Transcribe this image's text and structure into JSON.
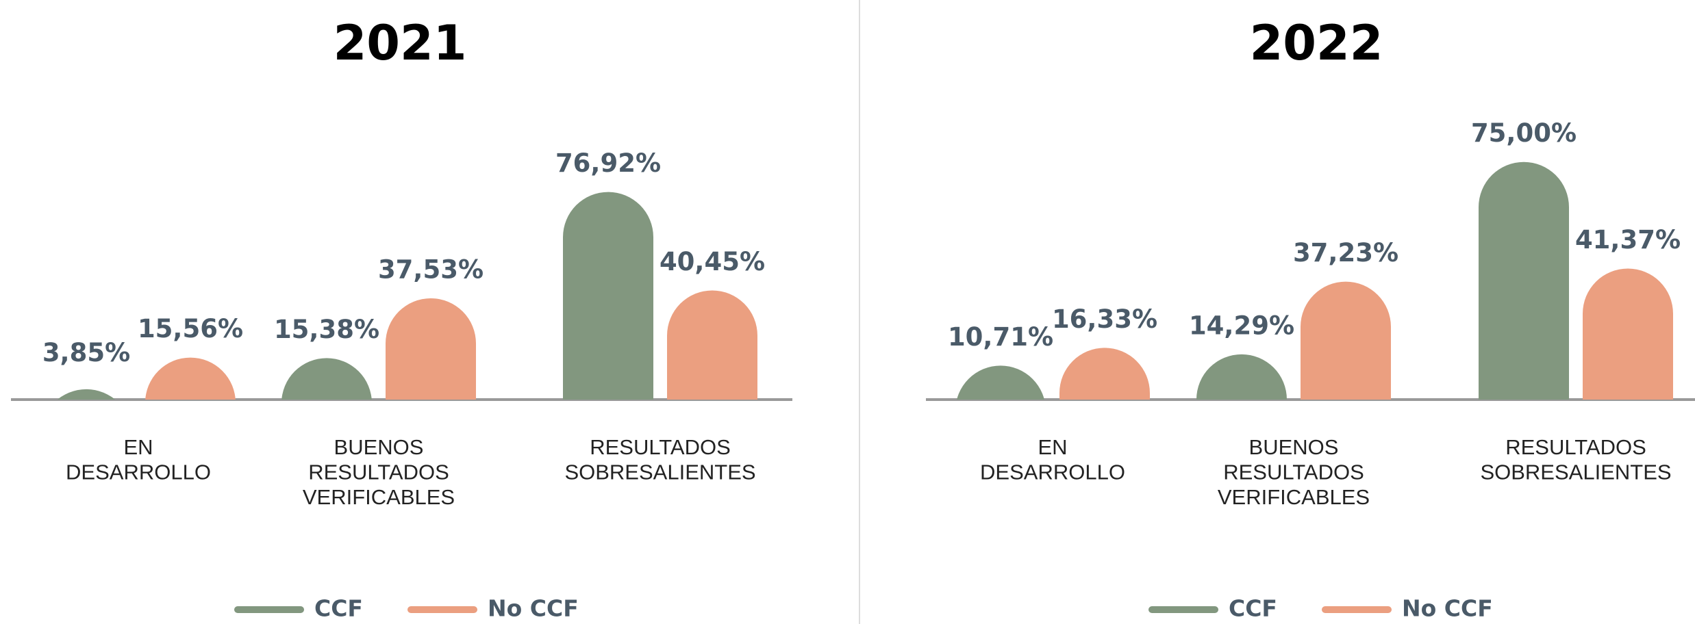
{
  "chart_data": [
    {
      "type": "bar",
      "title": "2021",
      "categories": [
        "EN\nDESARROLLO",
        "BUENOS\nRESULTADOS\nVERIFICABLES",
        "RESULTADOS\nSOBRESALIENTES"
      ],
      "series": [
        {
          "name": "CCF",
          "color": "#82977f",
          "values": [
            3.85,
            15.38,
            76.92
          ],
          "value_labels": [
            "3,85%",
            "15,38%",
            "76,92%"
          ]
        },
        {
          "name": "No CCF",
          "color": "#eb9f80",
          "values": [
            15.56,
            37.53,
            40.45
          ],
          "value_labels": [
            "15,56%",
            "37,53%",
            "40,45%"
          ]
        }
      ],
      "ylim": [
        0,
        108
      ]
    },
    {
      "type": "bar",
      "title": "2022",
      "categories": [
        "EN\nDESARROLLO",
        "BUENOS\nRESULTADOS\nVERIFICABLES",
        "RESULTADOS\nSOBRESALIENTES"
      ],
      "series": [
        {
          "name": "CCF",
          "color": "#82977f",
          "values": [
            10.71,
            14.29,
            75.0
          ],
          "value_labels": [
            "10,71%",
            "14,29%",
            "75,00%"
          ]
        },
        {
          "name": "No CCF",
          "color": "#eb9f80",
          "values": [
            16.33,
            37.23,
            41.37
          ],
          "value_labels": [
            "16,33%",
            "37,23%",
            "41,37%"
          ]
        }
      ],
      "ylim": [
        0,
        92
      ]
    }
  ]
}
